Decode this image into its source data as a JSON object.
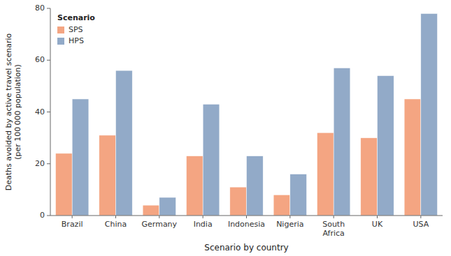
{
  "chart_data": {
    "type": "bar",
    "categories": [
      "Brazil",
      "China",
      "Germany",
      "India",
      "Indonesia",
      "Nigeria",
      "South\nAfrica",
      "UK",
      "USA"
    ],
    "series": [
      {
        "name": "SPS",
        "color": "#F4A582",
        "values": [
          24,
          31,
          4,
          23,
          11,
          8,
          32,
          30,
          45
        ]
      },
      {
        "name": "HPS",
        "color": "#92AAC8",
        "values": [
          45,
          56,
          7,
          43,
          23,
          16,
          57,
          54,
          78
        ]
      }
    ],
    "xlabel": "Scenario by country",
    "ylabel": "Deaths avoided by active travel scenario\n(per 100 000 population)",
    "legend_title": "Scenario",
    "legend": "upper left",
    "ylim": [
      0,
      80
    ],
    "yticks": [
      0,
      20,
      40,
      60,
      80
    ],
    "grid": false
  }
}
